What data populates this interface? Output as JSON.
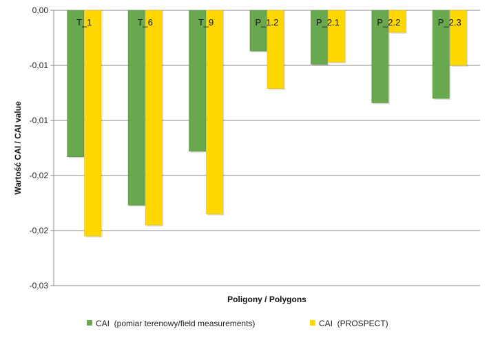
{
  "chart_data": {
    "type": "bar",
    "title": "",
    "xlabel": "Poligony / Polygons",
    "ylabel": "Wartość CAI / CAI value",
    "categories": [
      "T_1",
      "T_6",
      "T_9",
      "P_1.2",
      "P_2.1",
      "P_2.2",
      "P_2.3"
    ],
    "series": [
      {
        "name": "CAI  (pomiar terenowy/field measurements)",
        "color": "#6aa84f",
        "values": [
          -0.0133,
          -0.0177,
          -0.0128,
          -0.0037,
          -0.0049,
          -0.0084,
          -0.008
        ]
      },
      {
        "name": "CAI  (PROSPECT)",
        "color": "#ffd800",
        "values": [
          -0.0205,
          -0.0195,
          -0.0185,
          -0.0071,
          -0.0047,
          -0.002,
          -0.005
        ]
      }
    ],
    "ylim": [
      -0.025,
      0.0
    ],
    "yticks": [
      0.0,
      -0.005,
      -0.01,
      -0.015,
      -0.02,
      -0.025
    ],
    "ytick_labels": [
      "0,00",
      "-0,01",
      "-0,01",
      "-0,02",
      "-0,02",
      "-0,03"
    ],
    "grid": true,
    "legend_position": "bottom",
    "category_labels_position": "top"
  }
}
